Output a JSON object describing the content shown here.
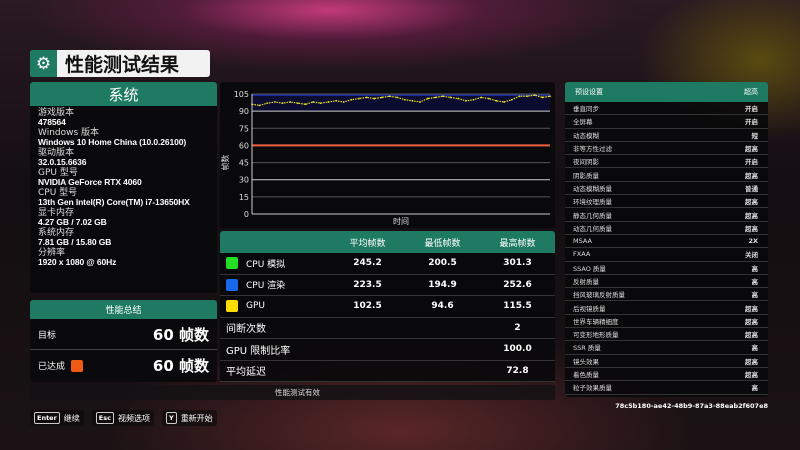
{
  "title": "性能测试结果",
  "system": {
    "heading": "系统",
    "items": [
      {
        "label": "游戏版本",
        "value": "478564"
      },
      {
        "label": "Windows 版本",
        "value": "Windows 10 Home China (10.0.26100)"
      },
      {
        "label": "驱动版本",
        "value": "32.0.15.6636"
      },
      {
        "label": "GPU 型号",
        "value": "NVIDIA GeForce RTX 4060"
      },
      {
        "label": "CPU 型号",
        "value": "13th Gen Intel(R) Core(TM) i7-13650HX"
      },
      {
        "label": "显卡内存",
        "value": "4.27 GB / 7.02 GB"
      },
      {
        "label": "系统内存",
        "value": "7.81 GB / 15.80 GB"
      },
      {
        "label": "分辨率",
        "value": "1920 x 1080 @ 60Hz"
      }
    ]
  },
  "summary": {
    "heading": "性能总结",
    "target_label": "目标",
    "target_value": "60 帧数",
    "achieved_label": "已达成",
    "achieved_value": "60 帧数",
    "achieved_color": "#f05a14"
  },
  "chart_data": {
    "type": "line",
    "xlabel": "时间",
    "ylabel": "帧数",
    "ylim": [
      0,
      105
    ],
    "yticks": [
      0,
      15,
      30,
      45,
      60,
      75,
      90,
      105
    ],
    "grid": true,
    "target_line": {
      "value": 60,
      "color": "#f06040"
    },
    "series": [
      {
        "color": "#e8e020",
        "values": [
          96,
          95,
          97,
          98,
          97,
          98,
          97,
          96,
          98,
          97,
          98,
          99,
          98,
          100,
          101,
          102,
          101,
          102,
          103,
          102,
          100,
          99,
          98,
          101,
          102,
          103,
          102,
          101,
          99,
          100,
          102,
          101,
          99,
          98,
          100,
          103,
          103,
          104,
          102,
          103
        ]
      }
    ],
    "cap_band_color": "#1a2a9a"
  },
  "table": {
    "headers": [
      "",
      "平均帧数",
      "最低帧数",
      "最高帧数"
    ],
    "rows": [
      {
        "name": "CPU 模拟",
        "color": "#22dd22",
        "avg": "245.2",
        "min": "200.5",
        "max": "301.3"
      },
      {
        "name": "CPU 渲染",
        "color": "#1a66ee",
        "avg": "223.5",
        "min": "194.9",
        "max": "252.6"
      },
      {
        "name": "GPU",
        "color": "#ffdd00",
        "avg": "102.5",
        "min": "94.6",
        "max": "115.5"
      }
    ],
    "extra": [
      {
        "label": "间断次数",
        "value": "2"
      },
      {
        "label": "GPU 限制比率",
        "value": "100.0"
      },
      {
        "label": "平均延迟",
        "value": "72.8"
      }
    ]
  },
  "valid_text": "性能测试有效",
  "settings": {
    "heading": "预设设置",
    "preset": "超高",
    "items": [
      [
        "垂直同步",
        "开启"
      ],
      [
        "全屏幕",
        "开启"
      ],
      [
        "动态模糊",
        "短"
      ],
      [
        "非等方性过滤",
        "超高"
      ],
      [
        "夜间阴影",
        "开启"
      ],
      [
        "阴影质量",
        "超高"
      ],
      [
        "动态模糊质量",
        "普通"
      ],
      [
        "环境纹理质量",
        "超高"
      ],
      [
        "静态几何质量",
        "超高"
      ],
      [
        "动态几何质量",
        "超高"
      ],
      [
        "MSAA",
        "2X"
      ],
      [
        "FXAA",
        "关闭"
      ],
      [
        "SSAO 质量",
        "高"
      ],
      [
        "反射质量",
        "高"
      ],
      [
        "挡风玻璃反射质量",
        "高"
      ],
      [
        "后视镜质量",
        "超高"
      ],
      [
        "世界车辆精细度",
        "超高"
      ],
      [
        "可变形地形质量",
        "超高"
      ],
      [
        "SSR 质量",
        "高"
      ],
      [
        "镜头效果",
        "超高"
      ],
      [
        "着色质量",
        "超高"
      ],
      [
        "粒子效果质量",
        "高"
      ]
    ]
  },
  "uid": "78c5b180-ae42-48b9-87a3-88eab2f607e8",
  "footer": [
    {
      "key": "Enter",
      "label": "继续"
    },
    {
      "key": "Esc",
      "label": "视频选项"
    },
    {
      "key": "Y",
      "label": "重新开始"
    }
  ]
}
